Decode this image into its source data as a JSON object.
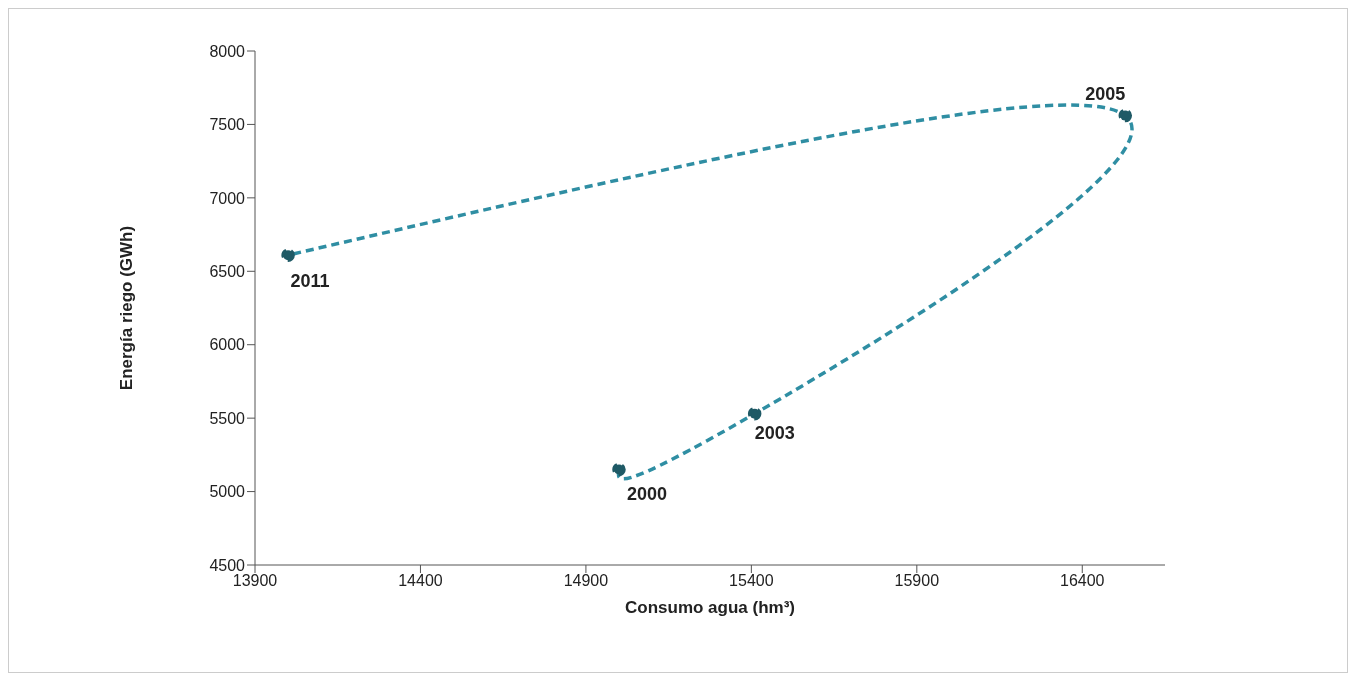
{
  "chart_data": {
    "type": "line",
    "xlabel": "Consumo agua (hm³)",
    "ylabel": "Energía riego (GWh)",
    "x": [
      15000,
      15410,
      16530,
      14000
    ],
    "series": [
      {
        "color": "#2f8ea3",
        "values": [
          5150,
          5530,
          7560,
          6610
        ]
      }
    ],
    "xlim": [
      13900,
      16650
    ],
    "xticks": [
      13900,
      14400,
      14900,
      15400,
      15900,
      16400
    ],
    "ylim": [
      4500,
      8000
    ],
    "yticks": [
      4500,
      5000,
      5500,
      6000,
      6500,
      7000,
      7500,
      8000
    ],
    "grid": false,
    "legend": false,
    "marker": "circle",
    "line_style": "dashed",
    "annotations": [
      {
        "text": "2000",
        "x": 15000,
        "y": 5150
      },
      {
        "text": "2003",
        "x": 15410,
        "y": 5530
      },
      {
        "text": "2005",
        "x": 16530,
        "y": 7560
      },
      {
        "text": "2011",
        "x": 14000,
        "y": 6610
      }
    ]
  }
}
